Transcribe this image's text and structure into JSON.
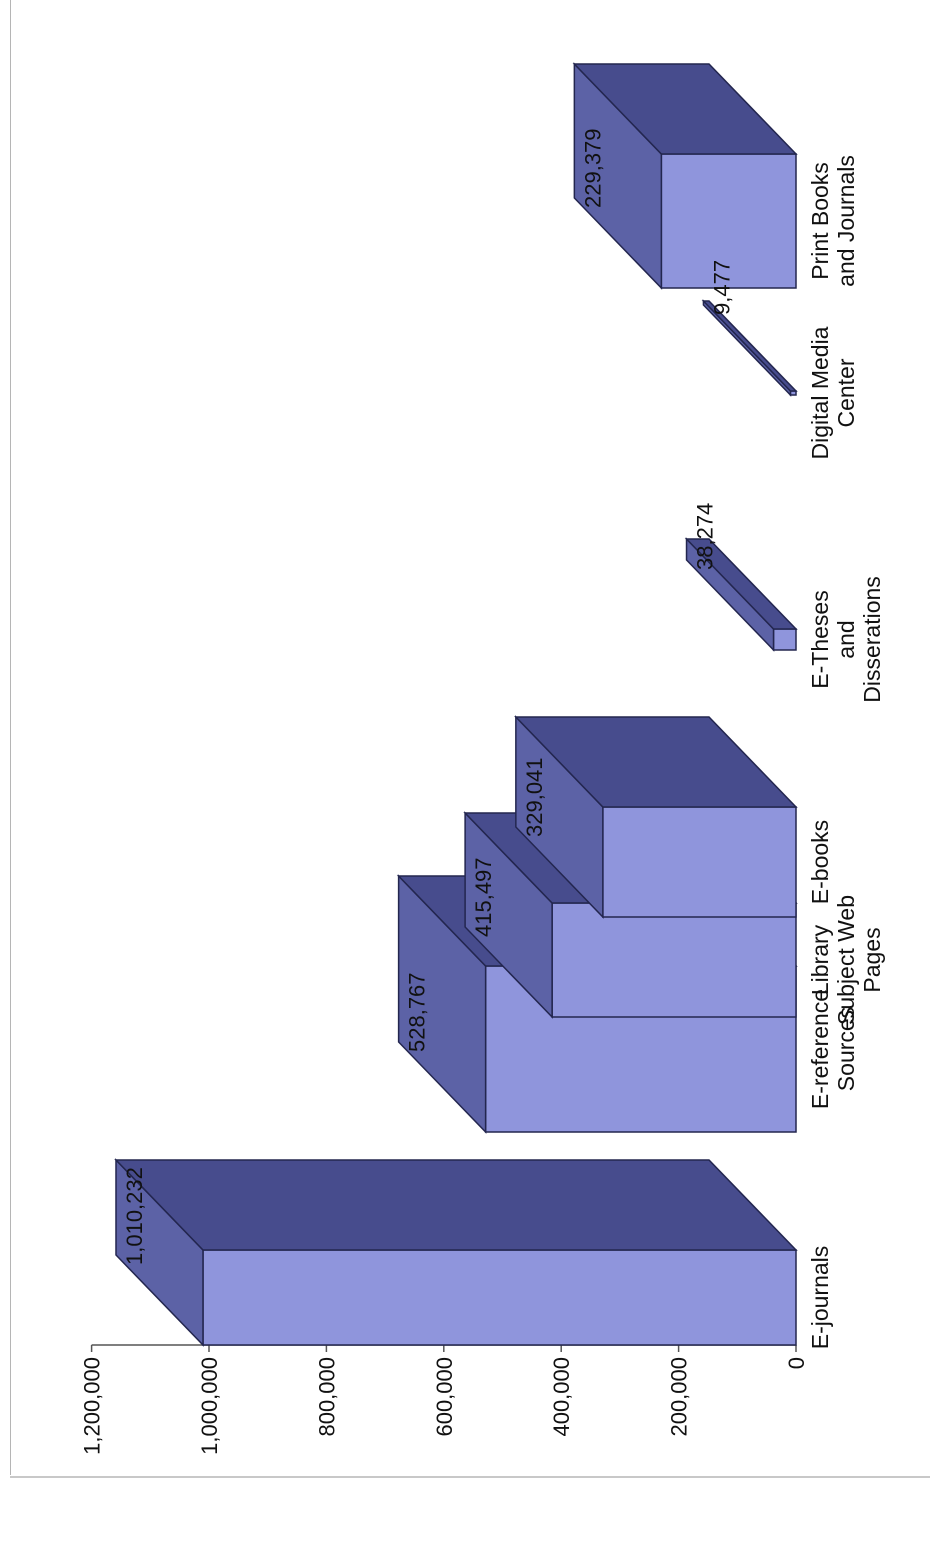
{
  "chart_data": {
    "type": "bar",
    "orientation": "vertical, rendered rotated 90 degrees counter-clockwise",
    "style": "3d",
    "title": "",
    "xlabel": "",
    "ylabel": "",
    "ylim": [
      0,
      1200000
    ],
    "yticks": [
      "0",
      "200,000",
      "400,000",
      "600,000",
      "800,000",
      "1,000,000",
      "1,200,000"
    ],
    "categories": [
      "E-journals",
      "E-reference Sources",
      "Library Subject Web Pages",
      "E-books",
      "E-Theses and Disserations",
      "Digital Media Center",
      "Print Books and Journals"
    ],
    "category_lines": [
      [
        "E-journals"
      ],
      [
        "E-reference",
        "Sources"
      ],
      [
        "Library",
        "Subject Web",
        "Pages"
      ],
      [
        "E-books"
      ],
      [
        "E-Theses",
        "and",
        "Disserations"
      ],
      [
        "Digital Media",
        "Center"
      ],
      [
        "Print Books",
        "and Journals"
      ]
    ],
    "values": [
      1010232,
      528767,
      415497,
      329041,
      38274,
      9477,
      229379
    ],
    "data_labels": [
      "1,010,232",
      "528,767",
      "415,497",
      "329,041",
      "38,274",
      "9,477",
      "229,379"
    ],
    "grid": false,
    "legend": "none",
    "colors": {
      "front": "#8f95dc",
      "top": "#5c62a6",
      "side": "#474c8d",
      "edge": "#23264f"
    }
  }
}
